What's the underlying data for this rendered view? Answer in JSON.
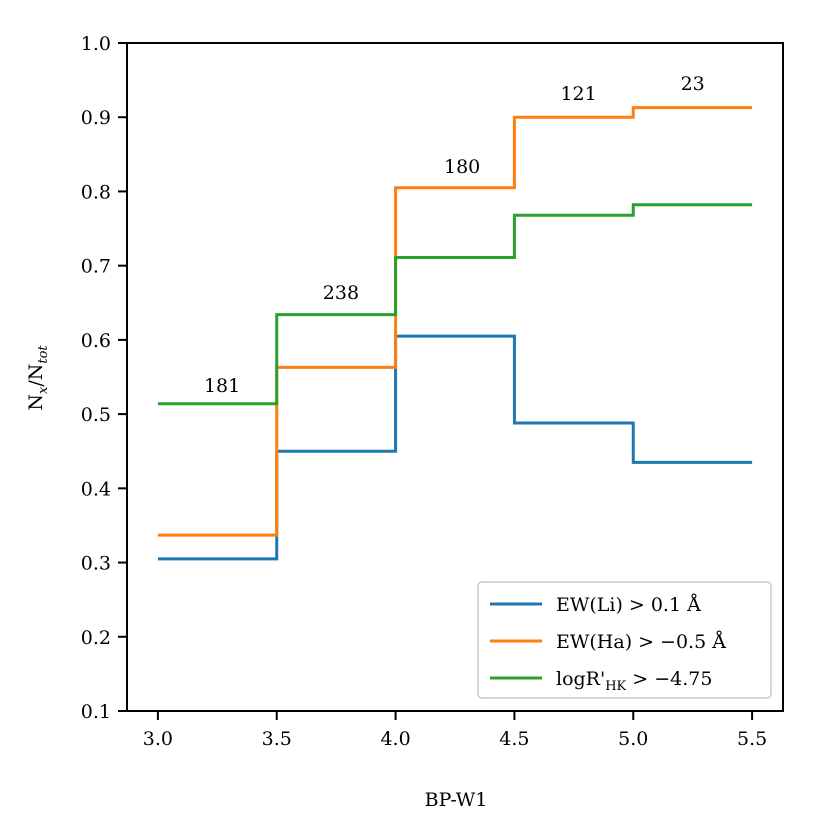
{
  "chart_data": {
    "type": "line",
    "style": "step",
    "title": "",
    "xlabel": "BP-W1",
    "ylabel": "N_x/N_tot",
    "ylabel_main": "N",
    "ylabel_sub1": "x",
    "ylabel_slash": "/N",
    "ylabel_sub2": "tot",
    "xlim": [
      2.87,
      5.63
    ],
    "ylim": [
      0.1,
      1.0
    ],
    "x_ticks": [
      "3.0",
      "3.5",
      "4.0",
      "4.5",
      "5.0",
      "5.5"
    ],
    "y_ticks": [
      "0.1",
      "0.2",
      "0.3",
      "0.4",
      "0.5",
      "0.6",
      "0.7",
      "0.8",
      "0.9",
      "1.0"
    ],
    "bin_edges": [
      3.0,
      3.5,
      4.0,
      4.5,
      5.0,
      5.5
    ],
    "series": [
      {
        "name": "EW(Li) > 0.1 Å",
        "color": "#1f77b4",
        "values": [
          0.305,
          0.45,
          0.605,
          0.488,
          0.435
        ]
      },
      {
        "name": "EW(Ha) > −0.5 Å",
        "color": "#ff7f0e",
        "values": [
          0.337,
          0.563,
          0.805,
          0.9,
          0.913
        ]
      },
      {
        "name": "logR'HK > −4.75",
        "color": "#2ca02c",
        "values": [
          0.514,
          0.634,
          0.711,
          0.768,
          0.782
        ]
      }
    ],
    "annotations": [
      {
        "text": "181",
        "x": 3.27,
        "y": 0.53
      },
      {
        "text": "238",
        "x": 3.77,
        "y": 0.655
      },
      {
        "text": "180",
        "x": 4.28,
        "y": 0.825
      },
      {
        "text": "121",
        "x": 4.77,
        "y": 0.923
      },
      {
        "text": "23",
        "x": 5.25,
        "y": 0.937
      }
    ],
    "legend": {
      "position": "bottom-right",
      "entries": [
        {
          "prefix": "EW(Li)",
          "relation": ">",
          "value": "0.1 Å"
        },
        {
          "prefix": "EW(Ha)",
          "relation": ">",
          "value": "−0.5 Å"
        },
        {
          "prefix": "logR'",
          "sub": "HK",
          "relation": ">",
          "value": "−4.75"
        }
      ]
    }
  }
}
